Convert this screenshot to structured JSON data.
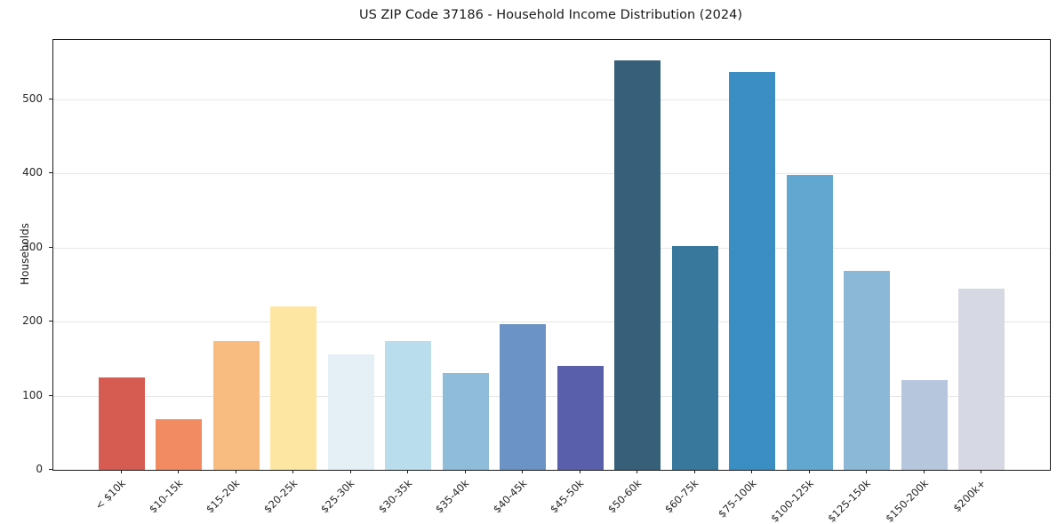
{
  "chart_data": {
    "type": "bar",
    "title": "US ZIP Code 37186 - Household Income Distribution (2024)",
    "xlabel": "",
    "ylabel": "Households",
    "categories": [
      "< $10k",
      "$10-15k",
      "$15-20k",
      "$20-25k",
      "$25-30k",
      "$30-35k",
      "$35-40k",
      "$40-45k",
      "$45-50k",
      "$50-60k",
      "$60-75k",
      "$75-100k",
      "$100-125k",
      "$125-150k",
      "$150-200k",
      "$200k+"
    ],
    "values": [
      125,
      68,
      174,
      220,
      156,
      174,
      131,
      196,
      140,
      552,
      302,
      537,
      398,
      268,
      121,
      245
    ],
    "bar_colors": [
      "#d65c52",
      "#f28a62",
      "#f9bc80",
      "#fde5a2",
      "#e4f0f6",
      "#b9dded",
      "#8fbcd9",
      "#6b93c5",
      "#5a5fab",
      "#36607a",
      "#38789d",
      "#3a8ec3",
      "#62a7d0",
      "#8cb8d8",
      "#b5c6dd",
      "#d6d9e4"
    ],
    "yticks": [
      0,
      100,
      200,
      300,
      400,
      500
    ],
    "ylim": [
      0,
      580
    ],
    "grid": "horizontal-only",
    "gridline_color": "#e7e7e7",
    "axis_color": "#1a1a1a",
    "background_color": "#ffffff",
    "legend": "none"
  }
}
